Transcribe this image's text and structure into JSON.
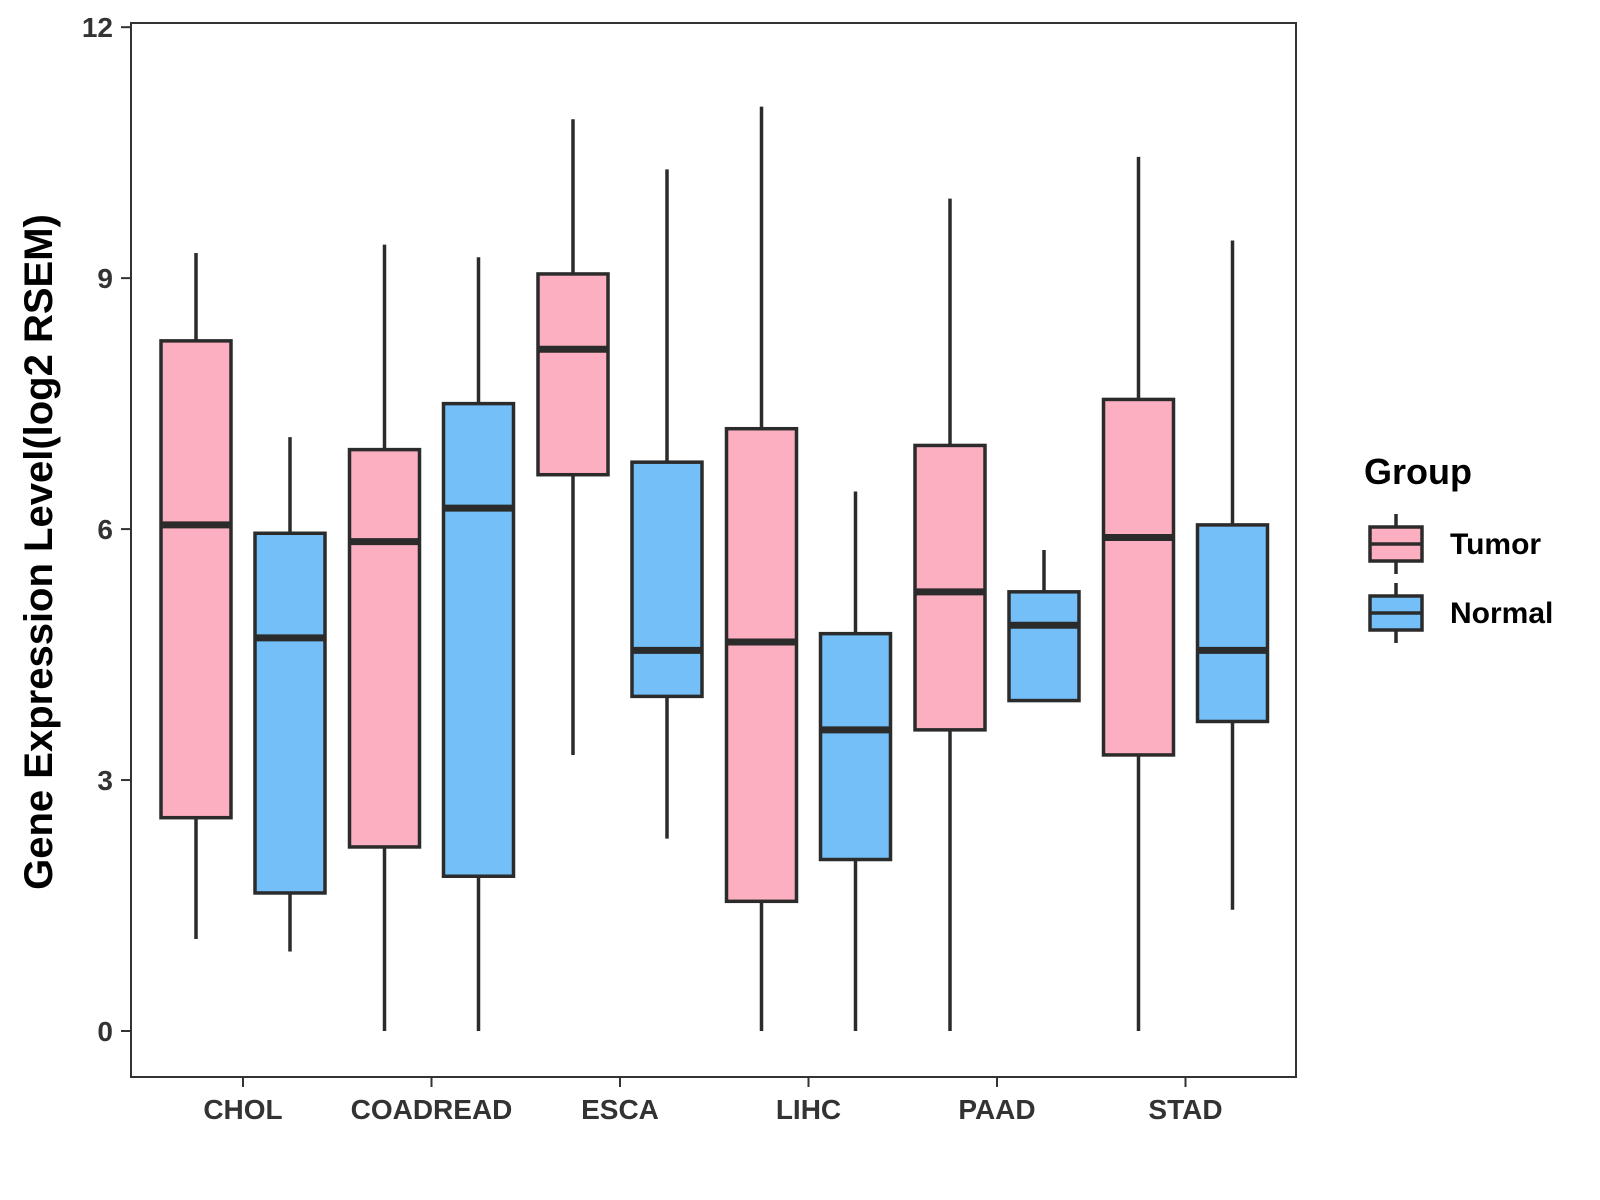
{
  "chart_data": {
    "type": "box",
    "title": "",
    "xlabel": "",
    "ylabel": "Gene Expression Level(log2 RSEM)",
    "categories": [
      "CHOL",
      "COADREAD",
      "ESCA",
      "LIHC",
      "PAAD",
      "STAD"
    ],
    "yticks": [
      "0",
      "3",
      "6",
      "9",
      "12"
    ],
    "ylim": [
      -0.55,
      12.05
    ],
    "grid": false,
    "legend": {
      "title": "Group",
      "position": "right",
      "entries": [
        "Tumor",
        "Normal"
      ]
    },
    "colors": {
      "Tumor": "#FBAFC0",
      "Normal": "#74BFF7",
      "stroke": "#2B2B2B"
    },
    "series": [
      {
        "name": "Tumor",
        "boxes": [
          {
            "category": "CHOL",
            "min": 1.1,
            "q1": 2.55,
            "median": 6.05,
            "q3": 8.25,
            "max": 9.3
          },
          {
            "category": "COADREAD",
            "min": 0.0,
            "q1": 2.2,
            "median": 5.85,
            "q3": 6.95,
            "max": 9.4
          },
          {
            "category": "ESCA",
            "min": 3.3,
            "q1": 6.65,
            "median": 8.15,
            "q3": 9.05,
            "max": 10.9
          },
          {
            "category": "LIHC",
            "min": 0.0,
            "q1": 1.55,
            "median": 4.65,
            "q3": 7.2,
            "max": 11.05
          },
          {
            "category": "PAAD",
            "min": 0.0,
            "q1": 3.6,
            "median": 5.25,
            "q3": 7.0,
            "max": 9.95
          },
          {
            "category": "STAD",
            "min": 0.0,
            "q1": 3.3,
            "median": 5.9,
            "q3": 7.55,
            "max": 10.45
          }
        ]
      },
      {
        "name": "Normal",
        "boxes": [
          {
            "category": "CHOL",
            "min": 0.95,
            "q1": 1.65,
            "median": 4.7,
            "q3": 5.95,
            "max": 7.1
          },
          {
            "category": "COADREAD",
            "min": 0.0,
            "q1": 1.85,
            "median": 6.25,
            "q3": 7.5,
            "max": 9.25
          },
          {
            "category": "ESCA",
            "min": 2.3,
            "q1": 4.0,
            "median": 4.55,
            "q3": 6.8,
            "max": 10.3
          },
          {
            "category": "LIHC",
            "min": 0.0,
            "q1": 2.05,
            "median": 3.6,
            "q3": 4.75,
            "max": 6.45
          },
          {
            "category": "PAAD",
            "min": 3.95,
            "q1": 3.95,
            "median": 4.85,
            "q3": 5.25,
            "max": 5.75
          },
          {
            "category": "STAD",
            "min": 1.45,
            "q1": 3.7,
            "median": 4.55,
            "q3": 6.05,
            "max": 9.45
          }
        ]
      }
    ]
  }
}
